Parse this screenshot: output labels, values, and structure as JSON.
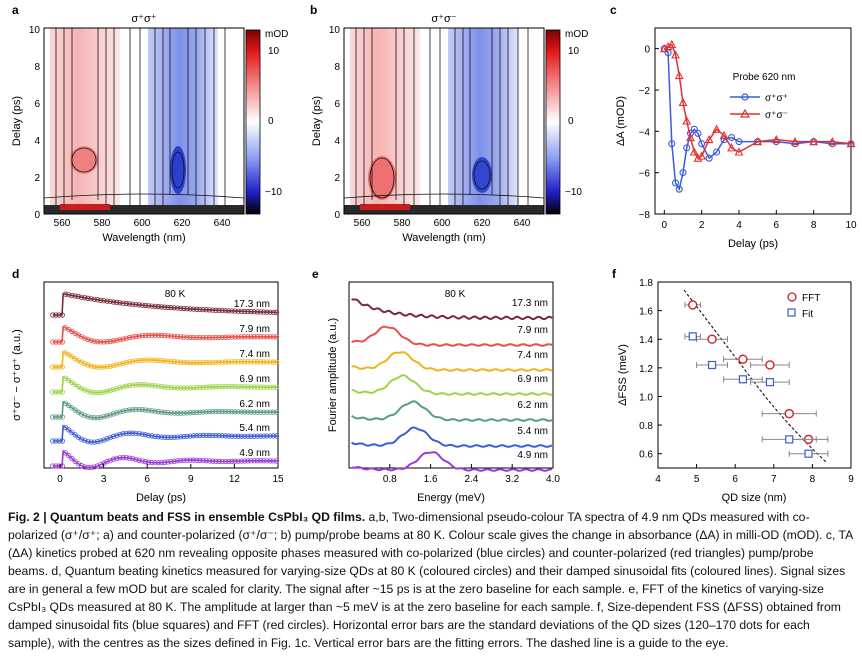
{
  "colors": {
    "red": "#e03030",
    "blue": "#3b5bdb",
    "ffts": [
      "#7a2a3a",
      "#e8504a",
      "#f2b21a",
      "#9ed24a",
      "#5a9a86",
      "#3f5cd8",
      "#9a3ad6"
    ]
  },
  "panels": {
    "a": {
      "letter": "a",
      "title": "σ⁺σ⁺",
      "xlabel": "Wavelength (nm)",
      "ylabel": "Delay (ps)",
      "xticks": [
        "560",
        "580",
        "600",
        "620",
        "640"
      ],
      "yticks": [
        "0",
        "2",
        "4",
        "6",
        "8",
        "10"
      ]
    },
    "b": {
      "letter": "b",
      "title": "σ⁺σ⁻",
      "xlabel": "Wavelength (nm)",
      "ylabel": "Delay (ps)",
      "xticks": [
        "560",
        "580",
        "600",
        "620",
        "640"
      ],
      "yticks": [
        "0",
        "2",
        "4",
        "6",
        "8",
        "10"
      ]
    },
    "colorbar": {
      "unit": "mOD",
      "ticks": [
        "10",
        "0",
        "−10"
      ]
    },
    "c": {
      "letter": "c",
      "xlabel": "Delay (ps)",
      "ylabel": "ΔA (mOD)",
      "xticks": [
        "0",
        "2",
        "4",
        "6",
        "8",
        "10"
      ],
      "yticks": [
        "0",
        "−2",
        "−4",
        "−6",
        "−8"
      ],
      "legend_title": "Probe 620 nm",
      "legend": [
        "σ⁺σ⁺",
        "σ⁺σ⁻"
      ]
    },
    "d": {
      "letter": "d",
      "xlabel": "Delay (ps)",
      "ylabel": "σ⁺σ⁻ − σ⁺σ⁺ (a.u.)",
      "annotation": "80 K",
      "xticks": [
        "0",
        "3",
        "6",
        "9",
        "12",
        "15"
      ],
      "sizes": [
        "17.3 nm",
        "7.9 nm",
        "7.4 nm",
        "6.9 nm",
        "6.2 nm",
        "5.4 nm",
        "4.9 nm"
      ]
    },
    "e": {
      "letter": "e",
      "xlabel": "Energy (meV)",
      "ylabel": "Fourier amplitude (a.u.)",
      "annotation": "80 K",
      "xticks": [
        "0.8",
        "1.6",
        "2.4",
        "3.2",
        "4.0"
      ],
      "sizes": [
        "17.3 nm",
        "7.9 nm",
        "7.4 nm",
        "6.9 nm",
        "6.2 nm",
        "5.4 nm",
        "4.9 nm"
      ]
    },
    "f": {
      "letter": "f",
      "xlabel": "QD size (nm)",
      "ylabel": "ΔFSS (meV)",
      "xticks": [
        "4",
        "5",
        "6",
        "7",
        "8",
        "9"
      ],
      "yticks": [
        "0.6",
        "0.8",
        "1.0",
        "1.2",
        "1.4",
        "1.6",
        "1.8"
      ],
      "legend": [
        "FFT",
        "Fit"
      ]
    }
  },
  "chart_data": [
    {
      "type": "line",
      "panel": "c",
      "xlim": [
        -0.5,
        10
      ],
      "ylim": [
        -8,
        1
      ],
      "series": [
        {
          "name": "σ⁺σ⁺",
          "x": [
            0,
            0.2,
            0.4,
            0.6,
            0.8,
            1.0,
            1.2,
            1.4,
            1.6,
            1.8,
            2.0,
            2.4,
            2.8,
            3.2,
            3.6,
            4,
            5,
            6,
            7,
            8,
            9,
            10
          ],
          "y": [
            0,
            -0.2,
            -4.6,
            -6.5,
            -6.8,
            -6.0,
            -4.8,
            -4.1,
            -3.9,
            -4.1,
            -4.6,
            -5.3,
            -5.0,
            -4.4,
            -4.3,
            -4.5,
            -4.5,
            -4.5,
            -4.6,
            -4.5,
            -4.6,
            -4.6
          ]
        },
        {
          "name": "σ⁺σ⁻",
          "x": [
            0,
            0.2,
            0.4,
            0.6,
            0.8,
            1.0,
            1.2,
            1.4,
            1.6,
            1.8,
            2.0,
            2.4,
            2.8,
            3.2,
            3.6,
            4,
            5,
            6,
            7,
            8,
            9,
            10
          ],
          "y": [
            0,
            0.1,
            0.2,
            -0.3,
            -1.3,
            -2.6,
            -3.5,
            -4.3,
            -5.0,
            -5.3,
            -5.2,
            -4.4,
            -3.9,
            -4.2,
            -4.8,
            -5.0,
            -4.5,
            -4.4,
            -4.5,
            -4.5,
            -4.5,
            -4.6
          ]
        }
      ]
    },
    {
      "type": "scatter",
      "panel": "f",
      "xlim": [
        4,
        9
      ],
      "ylim": [
        0.5,
        1.8
      ],
      "series": [
        {
          "name": "FFT",
          "x": [
            4.9,
            5.4,
            6.2,
            6.9,
            7.4,
            7.9
          ],
          "y": [
            1.64,
            1.4,
            1.26,
            1.22,
            0.88,
            0.7
          ],
          "xerr": [
            0.2,
            0.4,
            0.5,
            0.5,
            0.7,
            0.5
          ],
          "yerr": [
            0.02,
            0.02,
            0.02,
            0.02,
            0.02,
            0.02
          ]
        },
        {
          "name": "Fit",
          "x": [
            4.9,
            5.4,
            6.2,
            6.9,
            7.4,
            7.9
          ],
          "y": [
            1.42,
            1.22,
            1.12,
            1.1,
            0.7,
            0.6
          ],
          "xerr": [
            0.2,
            0.4,
            0.5,
            0.5,
            0.7,
            0.5
          ],
          "yerr": [
            0.02,
            0.02,
            0.02,
            0.02,
            0.02,
            0.02
          ]
        }
      ]
    }
  ],
  "caption": {
    "bold": "Fig. 2 | Quantum beats and FSS in ensemble CsPbI₃ QD films.",
    "text": " a,b, Two-dimensional pseudo-colour TA spectra of 4.9 nm QDs measured with co-polarized (σ⁺/σ⁺; a) and counter-polarized (σ⁺/σ⁻; b) pump/probe beams at 80 K. Colour scale gives the change in absorbance (ΔA) in milli-OD (mOD). c, TA (ΔA) kinetics probed at 620 nm revealing opposite phases measured with co-polarized (blue circles) and counter-polarized (red triangles) pump/probe beams. d, Quantum beating kinetics measured for varying-size QDs at 80 K (coloured circles) and their damped sinusoidal fits (coloured lines). Signal sizes are in general a few mOD but are scaled for clarity. The signal after ~15 ps is at the zero baseline for each sample. e, FFT of the kinetics of varying-size CsPbI₃ QDs measured at 80 K. The amplitude at larger than ~5 meV is at the zero baseline for each sample. f, Size-dependent FSS (ΔFSS) obtained from damped sinusoidal fits (blue squares) and FFT (red circles). Horizontal error bars are the standard deviations of the QD sizes (120–170 dots for each sample), with the centres as the sizes defined in Fig. 1c. Vertical error bars are the fitting errors. The dashed line is a guide to the eye."
  }
}
